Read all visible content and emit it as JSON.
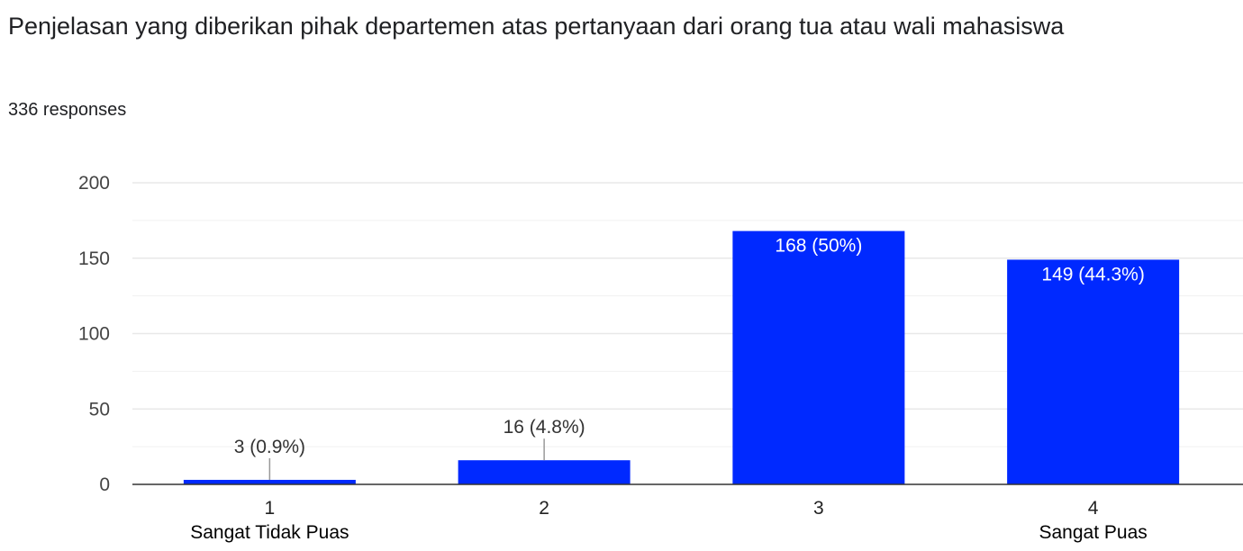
{
  "header": {
    "title": "Penjelasan yang diberikan pihak departemen atas pertanyaan dari orang tua atau wali mahasiswa",
    "responses": "336 responses"
  },
  "colors": {
    "bar": "#0029ff",
    "grid": "#e8e8e8",
    "axis": "#333333",
    "leader": "#999999"
  },
  "chart_data": {
    "type": "bar",
    "title": "Penjelasan yang diberikan pihak departemen atas pertanyaan dari orang tua atau wali mahasiswa",
    "xlabel": "",
    "ylabel": "",
    "categories": [
      "1",
      "2",
      "3",
      "4"
    ],
    "category_sublabels": [
      "Sangat Tidak Puas",
      "",
      "",
      "Sangat Puas"
    ],
    "values": [
      3,
      16,
      168,
      149
    ],
    "data_labels": [
      "3 (0.9%)",
      "16 (4.8%)",
      "168 (50%)",
      "149 (44.3%)"
    ],
    "ylim": [
      0,
      200
    ],
    "yticks": [
      0,
      50,
      100,
      150,
      200
    ],
    "grid": true,
    "legend": "none"
  }
}
